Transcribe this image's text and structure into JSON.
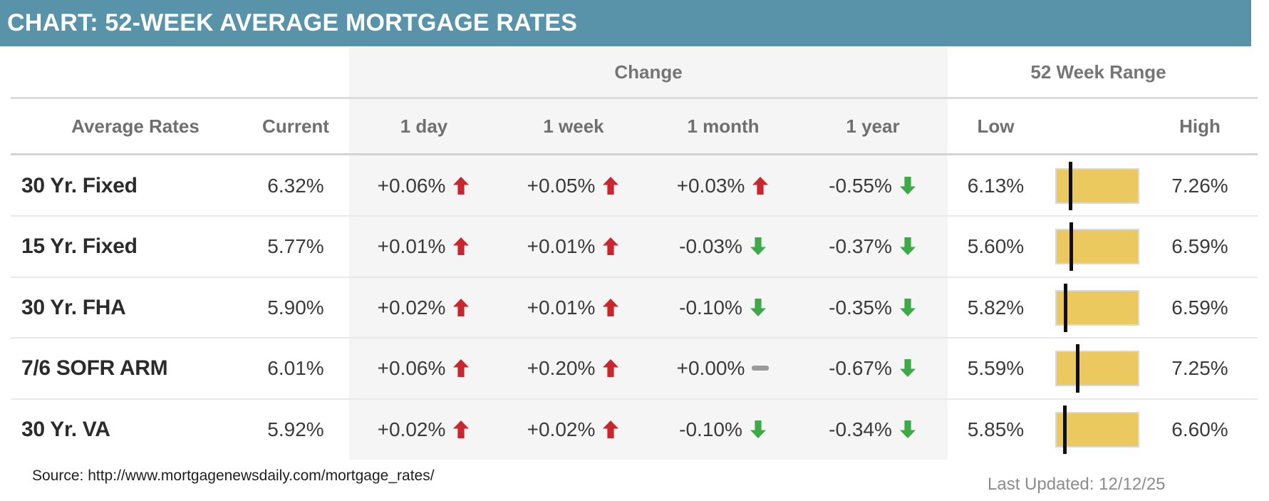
{
  "title": "CHART: 52-WEEK AVERAGE MORTGAGE RATES",
  "header": {
    "group_change": "Change",
    "group_range": "52 Week Range",
    "col_label": "Average Rates",
    "col_current": "Current",
    "col_1day": "1 day",
    "col_1week": "1 week",
    "col_1month": "1 month",
    "col_1year": "1 year",
    "col_low": "Low",
    "col_high": "High"
  },
  "colors": {
    "titlebar_bg": "#5893a9",
    "change_band_bg": "#f5f5f5",
    "up_arrow": "#c9262e",
    "down_arrow": "#3caa47",
    "flat_dash": "#9a9a9a",
    "range_bar_fill": "#ecc95e",
    "range_bar_border": "#d9d9d9",
    "range_marker": "#0f0f0f"
  },
  "chart_data": {
    "type": "table",
    "title": "CHART: 52-WEEK AVERAGE MORTGAGE RATES",
    "column_groups": [
      "Change",
      "52 Week Range"
    ],
    "columns": [
      "Average Rates",
      "Current",
      "1 day",
      "1 week",
      "1 month",
      "1 year",
      "Low",
      "High"
    ],
    "rows": [
      {
        "label": "30 Yr. Fixed",
        "current": "6.32%",
        "current_num": 6.32,
        "changes": [
          {
            "period": "1 day",
            "value": "+0.06%",
            "dir": "up"
          },
          {
            "period": "1 week",
            "value": "+0.05%",
            "dir": "up"
          },
          {
            "period": "1 month",
            "value": "+0.03%",
            "dir": "up"
          },
          {
            "period": "1 year",
            "value": "-0.55%",
            "dir": "down"
          }
        ],
        "low": "6.13%",
        "low_num": 6.13,
        "high": "7.26%",
        "high_num": 7.26
      },
      {
        "label": "15 Yr. Fixed",
        "current": "5.77%",
        "current_num": 5.77,
        "changes": [
          {
            "period": "1 day",
            "value": "+0.01%",
            "dir": "up"
          },
          {
            "period": "1 week",
            "value": "+0.01%",
            "dir": "up"
          },
          {
            "period": "1 month",
            "value": "-0.03%",
            "dir": "down"
          },
          {
            "period": "1 year",
            "value": "-0.37%",
            "dir": "down"
          }
        ],
        "low": "5.60%",
        "low_num": 5.6,
        "high": "6.59%",
        "high_num": 6.59
      },
      {
        "label": "30 Yr. FHA",
        "current": "5.90%",
        "current_num": 5.9,
        "changes": [
          {
            "period": "1 day",
            "value": "+0.02%",
            "dir": "up"
          },
          {
            "period": "1 week",
            "value": "+0.01%",
            "dir": "up"
          },
          {
            "period": "1 month",
            "value": "-0.10%",
            "dir": "down"
          },
          {
            "period": "1 year",
            "value": "-0.35%",
            "dir": "down"
          }
        ],
        "low": "5.82%",
        "low_num": 5.82,
        "high": "6.59%",
        "high_num": 6.59
      },
      {
        "label": "7/6 SOFR ARM",
        "current": "6.01%",
        "current_num": 6.01,
        "changes": [
          {
            "period": "1 day",
            "value": "+0.06%",
            "dir": "up"
          },
          {
            "period": "1 week",
            "value": "+0.20%",
            "dir": "up"
          },
          {
            "period": "1 month",
            "value": "+0.00%",
            "dir": "flat"
          },
          {
            "period": "1 year",
            "value": "-0.67%",
            "dir": "down"
          }
        ],
        "low": "5.59%",
        "low_num": 5.59,
        "high": "7.25%",
        "high_num": 7.25
      },
      {
        "label": "30 Yr. VA",
        "current": "5.92%",
        "current_num": 5.92,
        "changes": [
          {
            "period": "1 day",
            "value": "+0.02%",
            "dir": "up"
          },
          {
            "period": "1 week",
            "value": "+0.02%",
            "dir": "up"
          },
          {
            "period": "1 month",
            "value": "-0.10%",
            "dir": "down"
          },
          {
            "period": "1 year",
            "value": "-0.34%",
            "dir": "down"
          }
        ],
        "low": "5.85%",
        "low_num": 5.85,
        "high": "6.60%",
        "high_num": 6.6
      }
    ]
  },
  "footer": {
    "source": "Source: http://www.mortgagenewsdaily.com/mortgage_rates/",
    "last_updated": "Last Updated: 12/12/25"
  }
}
